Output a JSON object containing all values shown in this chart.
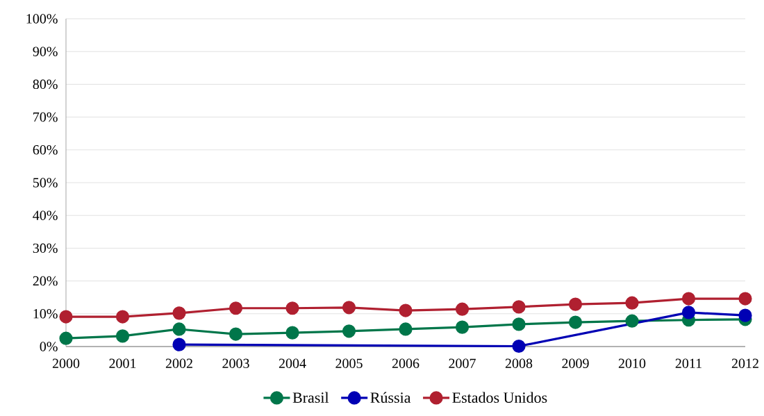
{
  "chart_data": {
    "type": "line",
    "x": [
      2000,
      2001,
      2002,
      2003,
      2004,
      2005,
      2006,
      2007,
      2008,
      2009,
      2010,
      2011,
      2012
    ],
    "xlim": [
      2000,
      2012
    ],
    "xticks": [
      2000,
      2001,
      2002,
      2003,
      2004,
      2005,
      2006,
      2007,
      2008,
      2009,
      2010,
      2011,
      2012
    ],
    "ylim": [
      0,
      100
    ],
    "yticks": [
      {
        "value": 0,
        "label": "0%"
      },
      {
        "value": 10,
        "label": "10%"
      },
      {
        "value": 20,
        "label": "20%"
      },
      {
        "value": 30,
        "label": "30%"
      },
      {
        "value": 40,
        "label": "40%"
      },
      {
        "value": 50,
        "label": "50%"
      },
      {
        "value": 60,
        "label": "60%"
      },
      {
        "value": 70,
        "label": "70%"
      },
      {
        "value": 80,
        "label": "80%"
      },
      {
        "value": 90,
        "label": "90%"
      },
      {
        "value": 100,
        "label": "100%"
      }
    ],
    "grid": "y",
    "legend": "bottom",
    "marker": "circle",
    "line_style": "solid",
    "series": [
      {
        "name": "Brasil",
        "color": "#00764a",
        "values": [
          2.5,
          3.2,
          5.3,
          3.8,
          4.2,
          4.7,
          5.3,
          5.9,
          6.8,
          7.4,
          7.8,
          8.1,
          8.3
        ]
      },
      {
        "name": "Rússia",
        "color": "#0000b4",
        "x": [
          2002,
          2008,
          2011,
          2012
        ],
        "values": [
          0.6,
          0.1,
          10.4,
          9.5
        ]
      },
      {
        "name": "Estados Unidos",
        "color": "#b02030",
        "values": [
          9.1,
          9.1,
          10.2,
          11.7,
          11.7,
          11.9,
          11.0,
          11.4,
          12.1,
          12.9,
          13.3,
          14.6,
          14.6
        ]
      }
    ]
  }
}
